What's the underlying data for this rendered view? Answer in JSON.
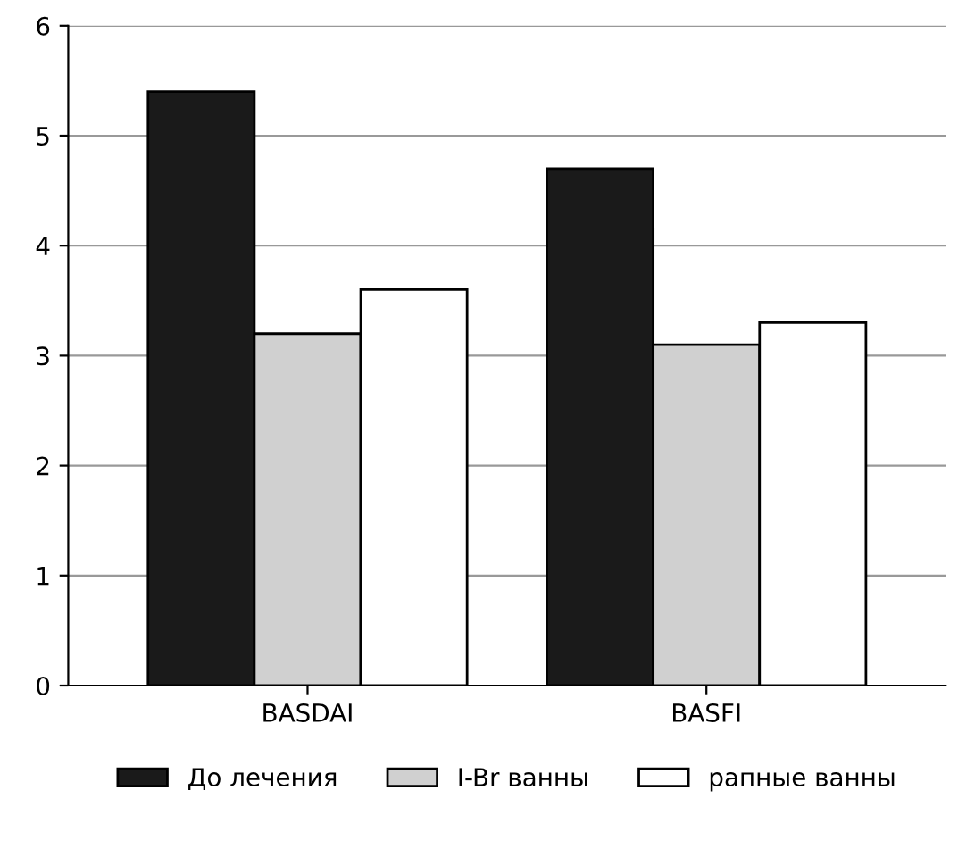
{
  "chart_data": {
    "type": "bar",
    "categories": [
      "BASDAI",
      "BASFI"
    ],
    "series": [
      {
        "name": "До лечения",
        "color": "#1a1a1a",
        "values": [
          5.4,
          4.7
        ]
      },
      {
        "name": "I-Br ванны",
        "color": "#d0d0d0",
        "values": [
          3.2,
          3.1
        ]
      },
      {
        "name": "рапные ванны",
        "color": "#ffffff",
        "values": [
          3.6,
          3.3
        ]
      }
    ],
    "ylim": [
      0,
      6
    ],
    "yticks": [
      0,
      1,
      2,
      3,
      4,
      5,
      6
    ],
    "grid": "y",
    "legend": "bottom"
  }
}
